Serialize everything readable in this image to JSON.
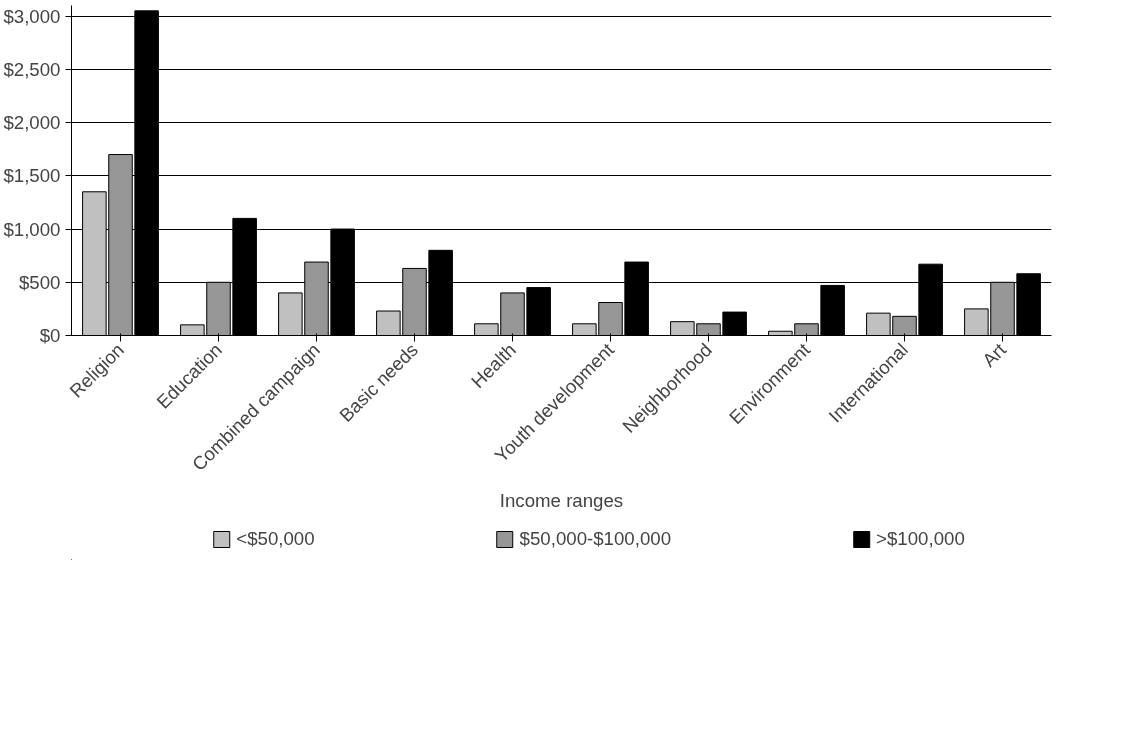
{
  "chart_data": {
    "type": "bar",
    "xlabel": "Income ranges",
    "categories": [
      "Religion",
      "Education",
      "Combined campaign",
      "Basic needs",
      "Health",
      "Youth development",
      "Neighborhood",
      "Environment",
      "International",
      "Art"
    ],
    "series": [
      {
        "name": "<$50,000",
        "color": "#c0c0c0",
        "values": [
          1350,
          100,
          400,
          230,
          110,
          110,
          130,
          40,
          210,
          250
        ]
      },
      {
        "name": "$50,000-$100,000",
        "color": "#969696",
        "values": [
          1700,
          500,
          690,
          630,
          400,
          310,
          110,
          110,
          180,
          500
        ]
      },
      {
        "name": ">$100,000",
        "color": "#000000",
        "values": [
          3050,
          1100,
          1000,
          800,
          450,
          690,
          220,
          470,
          670,
          580
        ]
      }
    ],
    "ylim": [
      0,
      3100
    ],
    "yticks": [
      {
        "value": 0,
        "label": "$0"
      },
      {
        "value": 500,
        "label": "$500"
      },
      {
        "value": 1000,
        "label": "$1,000"
      },
      {
        "value": 1500,
        "label": "$1,500"
      },
      {
        "value": 2000,
        "label": "$2,000"
      },
      {
        "value": 2500,
        "label": "$2,500"
      },
      {
        "value": 3000,
        "label": "$3,000"
      }
    ],
    "grid": "y",
    "legend": "bottom"
  }
}
